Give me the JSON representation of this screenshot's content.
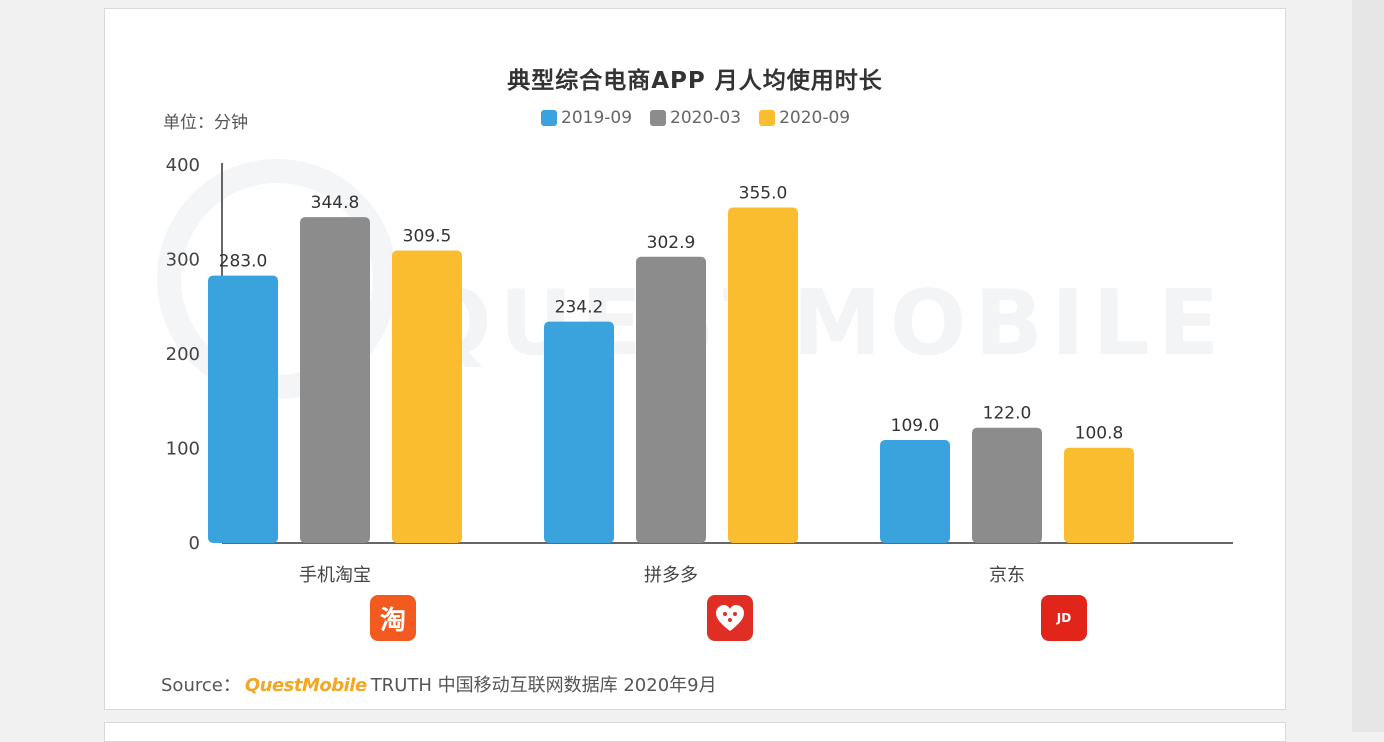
{
  "title": "典型综合电商APP 月人均使用时长",
  "unit_label": "单位：分钟",
  "source": {
    "prefix": "Source：",
    "brand": "QuestMobile",
    "text": "TRUTH 中国移动互联网数据库 2020年9月"
  },
  "watermark": "QUESTMOBILE",
  "logos": [
    {
      "name": "taobao-logo-icon",
      "glyph": "淘"
    },
    {
      "name": "pinduoduo-logo-icon",
      "glyph": ""
    },
    {
      "name": "jd-logo-icon",
      "glyph": "JD"
    }
  ],
  "chart_data": {
    "type": "bar",
    "title": "典型综合电商APP 月人均使用时长",
    "ylabel": "单位：分钟",
    "xlabel": "",
    "ylim": [
      0,
      400
    ],
    "yticks": [
      0,
      100,
      200,
      300,
      400
    ],
    "grid": false,
    "legend_position": "top",
    "categories": [
      "手机淘宝",
      "拼多多",
      "京东"
    ],
    "series": [
      {
        "name": "2019-09",
        "color": "#3aa2dc",
        "values": [
          283.0,
          234.2,
          109.0
        ]
      },
      {
        "name": "2020-03",
        "color": "#8c8c8c",
        "values": [
          344.8,
          302.9,
          122.0
        ]
      },
      {
        "name": "2020-09",
        "color": "#fbbd30",
        "values": [
          309.5,
          355.0,
          100.8
        ]
      }
    ]
  }
}
